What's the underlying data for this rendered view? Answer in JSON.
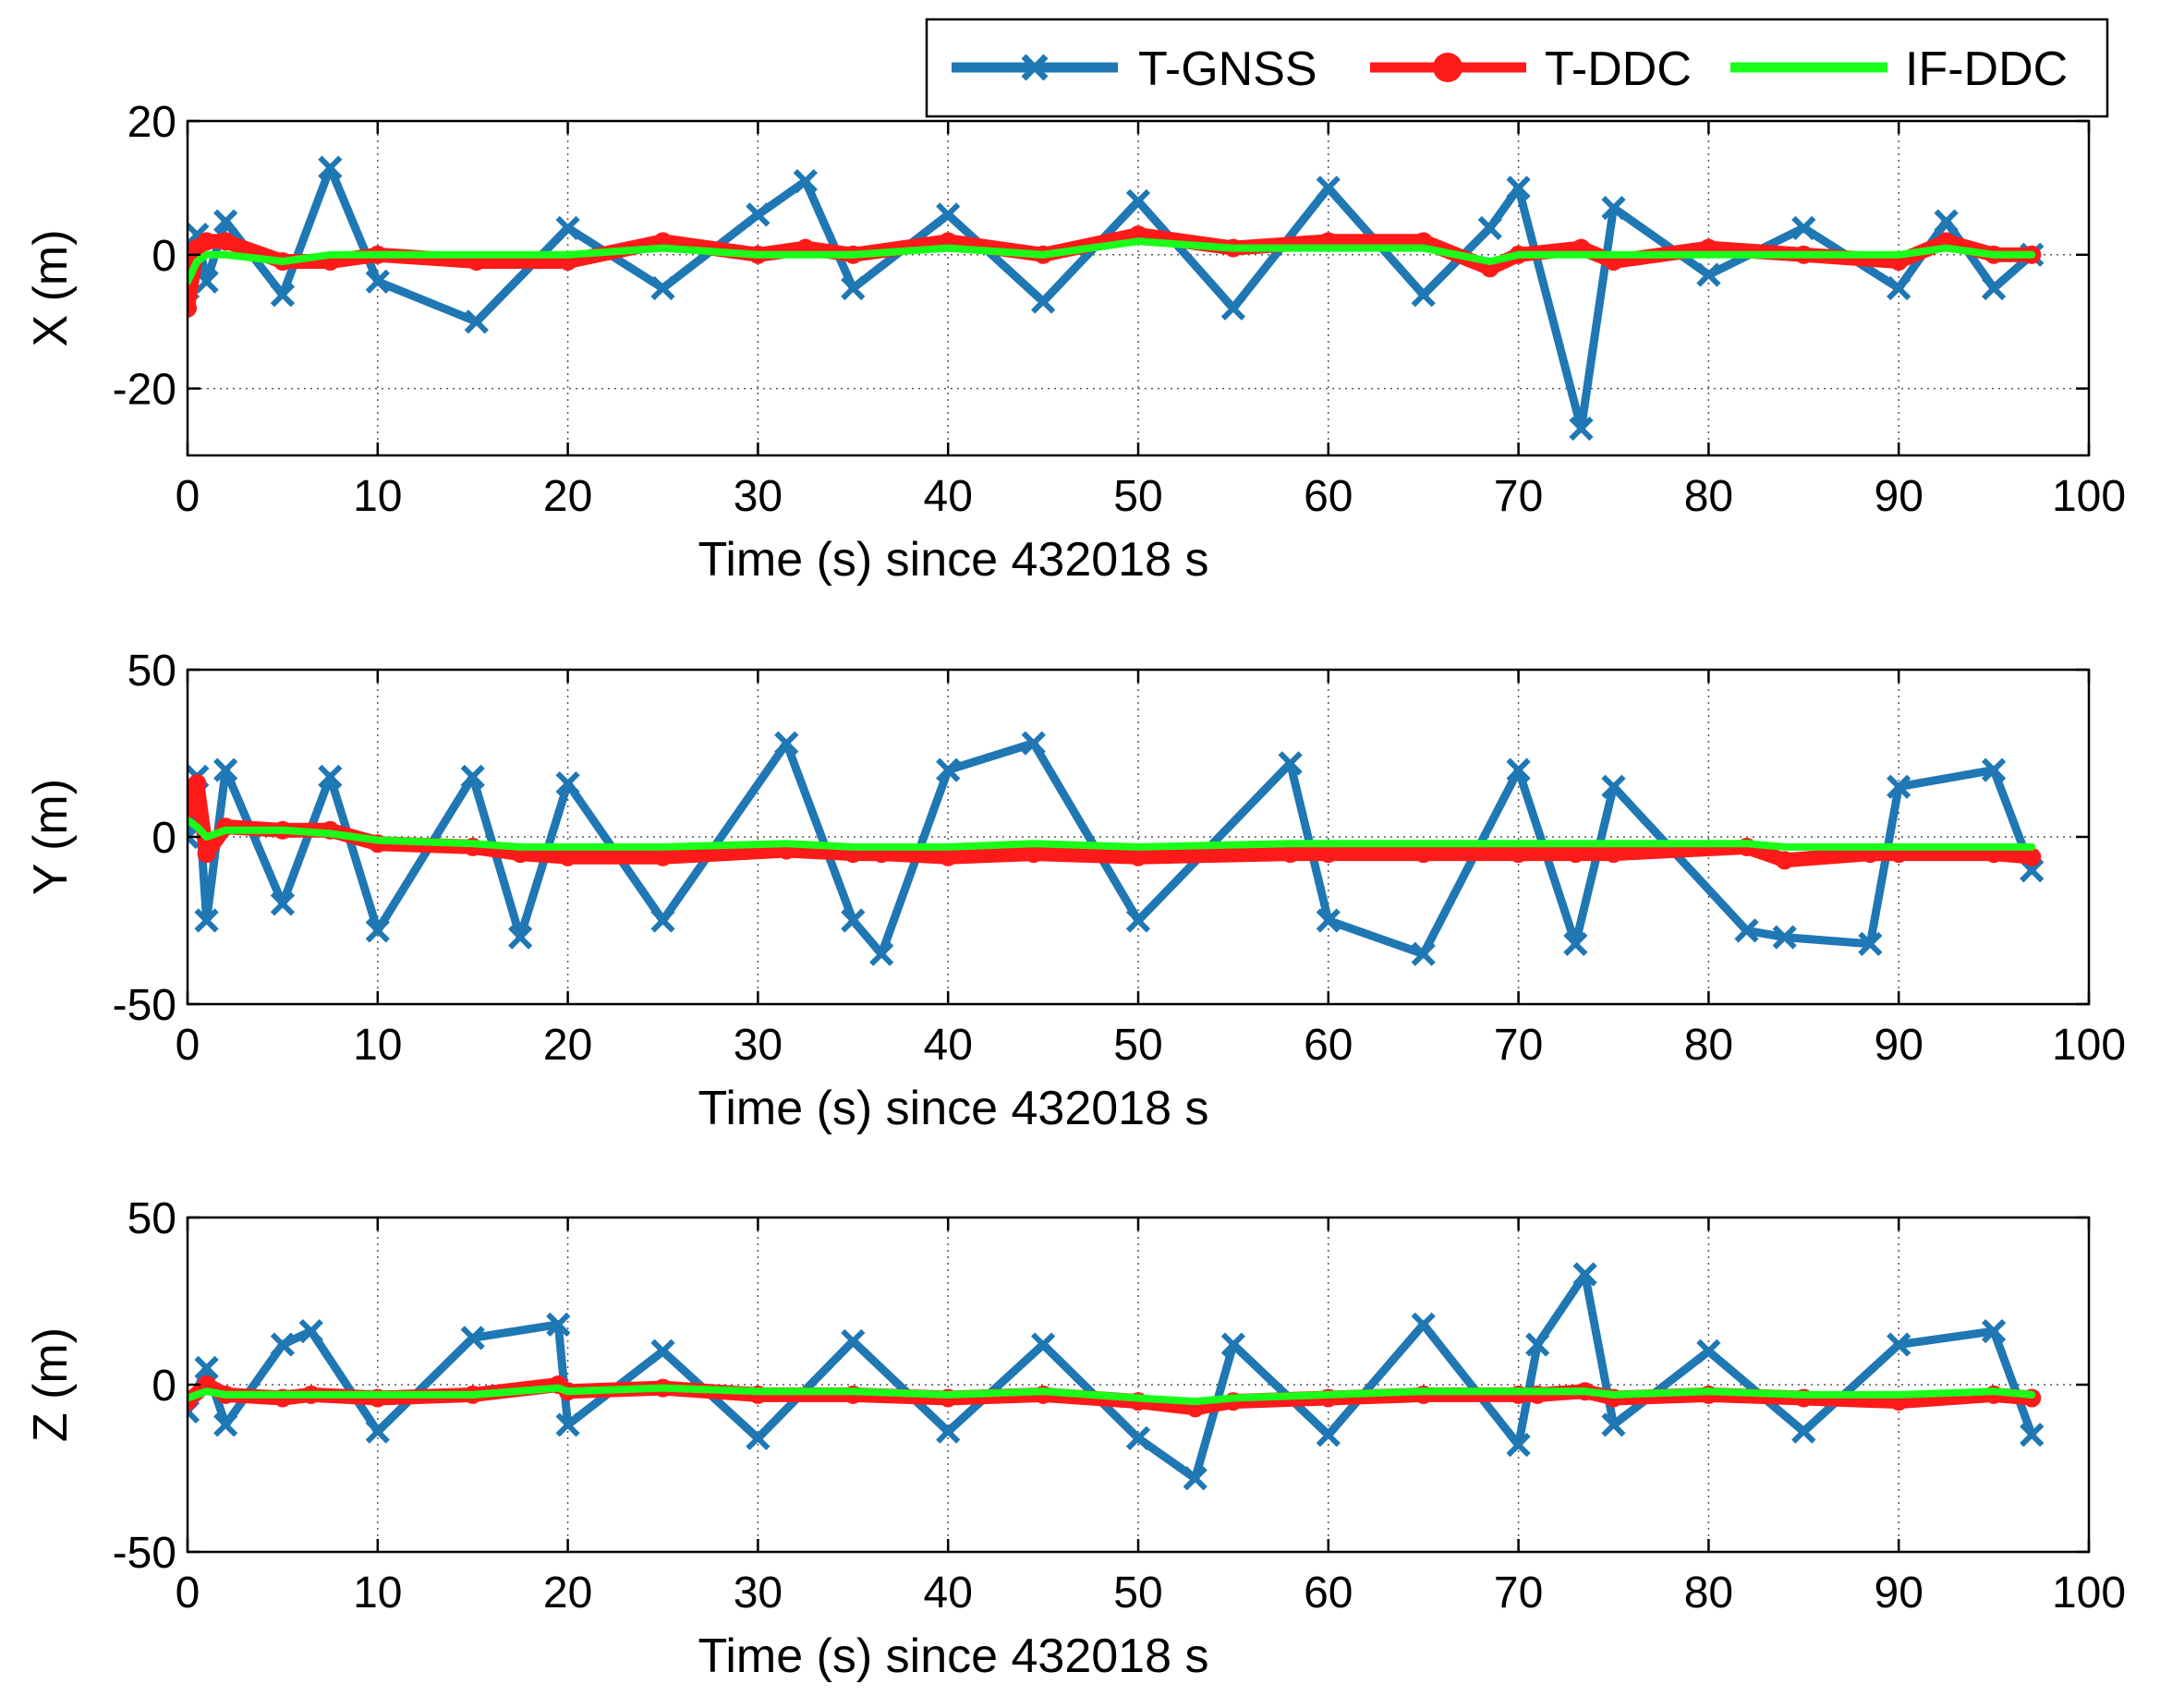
{
  "legend": {
    "placement": "top-right",
    "entries": [
      {
        "name": "T-GNSS",
        "color": "#1f77b4",
        "marker": "x"
      },
      {
        "name": "T-DDC",
        "color": "#ff1a1a",
        "marker": "o"
      },
      {
        "name": "IF-DDC",
        "color": "#19ff19",
        "marker": "none"
      }
    ]
  },
  "chart_data": [
    {
      "type": "line",
      "title": "",
      "xlabel": "Time (s) since 432018 s",
      "ylabel": "X (m)",
      "xlim": [
        0,
        100
      ],
      "ylim": [
        -30,
        20
      ],
      "xticks": [
        0,
        10,
        20,
        30,
        40,
        50,
        60,
        70,
        80,
        90,
        100
      ],
      "yticks": [
        -20,
        0,
        20
      ],
      "grid": true,
      "x": [
        0,
        0.5,
        1,
        2,
        5,
        7.5,
        10,
        15.2,
        20,
        25,
        30,
        32.5,
        35,
        40,
        45,
        50,
        55,
        60,
        65,
        68.5,
        70,
        73.3,
        75,
        80,
        85,
        90,
        92.5,
        95,
        97
      ],
      "series": [
        {
          "name": "T-GNSS",
          "values": [
            -5,
            3,
            -4,
            5,
            -6,
            13,
            -4,
            -10,
            4,
            -5,
            6,
            11,
            -5,
            6,
            -7,
            8,
            -8,
            10,
            -6,
            4,
            10,
            -26,
            7,
            -3,
            4,
            -5,
            5,
            -5,
            0
          ]
        },
        {
          "name": "T-DDC",
          "values": [
            -8,
            1,
            2,
            2,
            -1,
            -1,
            0,
            -1,
            -1,
            2,
            0,
            1,
            0,
            2,
            0,
            3,
            1,
            2,
            2,
            -2,
            0,
            1,
            -1,
            1,
            0,
            -1,
            2,
            0,
            0
          ]
        },
        {
          "name": "IF-DDC",
          "values": [
            -4,
            -1,
            0,
            0,
            -1,
            0,
            0,
            0,
            0,
            1,
            0,
            0,
            0,
            1,
            0,
            2,
            1,
            1,
            1,
            -1,
            0,
            0,
            0,
            0,
            0,
            0,
            1,
            0,
            0
          ]
        }
      ]
    },
    {
      "type": "line",
      "title": "",
      "xlabel": "Time (s) since 432018 s",
      "ylabel": "Y (m)",
      "xlim": [
        0,
        100
      ],
      "ylim": [
        -50,
        50
      ],
      "xticks": [
        0,
        10,
        20,
        30,
        40,
        50,
        60,
        70,
        80,
        90,
        100
      ],
      "yticks": [
        -50,
        0,
        50
      ],
      "grid": true,
      "x": [
        0,
        0.5,
        1,
        2,
        5,
        7.5,
        10,
        15,
        17.5,
        20,
        25,
        31.5,
        35,
        36.5,
        40,
        44.5,
        50,
        58,
        60,
        65,
        70,
        73,
        75,
        82,
        84,
        88.5,
        90,
        95,
        97
      ],
      "series": [
        {
          "name": "T-GNSS",
          "values": [
            0,
            18,
            -25,
            20,
            -20,
            18,
            -28,
            18,
            -30,
            16,
            -25,
            28,
            -25,
            -35,
            20,
            28,
            -25,
            22,
            -25,
            -35,
            20,
            -32,
            15,
            -28,
            -30,
            -32,
            15,
            20,
            -10
          ]
        },
        {
          "name": "T-DDC",
          "values": [
            8,
            16,
            -5,
            3,
            2,
            2,
            -2,
            -3,
            -5,
            -6,
            -6,
            -4,
            -5,
            -5,
            -6,
            -5,
            -6,
            -5,
            -5,
            -5,
            -5,
            -5,
            -5,
            -3,
            -7,
            -5,
            -5,
            -5,
            -6
          ]
        },
        {
          "name": "IF-DDC",
          "values": [
            5,
            3,
            0,
            2,
            2,
            1,
            -1,
            -2,
            -3,
            -3,
            -3,
            -2,
            -3,
            -3,
            -3,
            -2,
            -3,
            -2,
            -2,
            -2,
            -2,
            -2,
            -2,
            -2,
            -3,
            -3,
            -3,
            -3,
            -3
          ]
        }
      ]
    },
    {
      "type": "line",
      "title": "",
      "xlabel": "Time (s) since 432018 s",
      "ylabel": "Z (m)",
      "xlim": [
        0,
        100
      ],
      "ylim": [
        -50,
        50
      ],
      "xticks": [
        0,
        10,
        20,
        30,
        40,
        50,
        60,
        70,
        80,
        90,
        100
      ],
      "yticks": [
        -50,
        0,
        50
      ],
      "grid": true,
      "x": [
        0,
        1,
        2,
        5,
        6.5,
        10,
        15,
        19.5,
        20,
        25,
        30,
        35,
        40,
        45,
        50,
        53,
        55,
        60,
        65,
        70,
        71,
        73.5,
        75,
        80,
        85,
        90,
        95,
        97
      ],
      "series": [
        {
          "name": "T-GNSS",
          "values": [
            -8,
            5,
            -12,
            12,
            16,
            -14,
            14,
            18,
            -12,
            10,
            -16,
            13,
            -14,
            12,
            -16,
            -28,
            12,
            -15,
            18,
            -18,
            12,
            33,
            -12,
            10,
            -14,
            12,
            16,
            -15
          ]
        },
        {
          "name": "T-DDC",
          "values": [
            -5,
            0,
            -3,
            -4,
            -3,
            -4,
            -3,
            0,
            -2,
            -1,
            -3,
            -3,
            -4,
            -3,
            -5,
            -7,
            -5,
            -4,
            -3,
            -3,
            -3,
            -2,
            -4,
            -3,
            -4,
            -5,
            -3,
            -4
          ]
        },
        {
          "name": "IF-DDC",
          "values": [
            -4,
            -2,
            -3,
            -3,
            -3,
            -3,
            -3,
            -1,
            -2,
            -1,
            -2,
            -2,
            -3,
            -2,
            -4,
            -5,
            -4,
            -3,
            -2,
            -2,
            -2,
            -2,
            -3,
            -2,
            -3,
            -3,
            -2,
            -3
          ]
        }
      ]
    }
  ]
}
